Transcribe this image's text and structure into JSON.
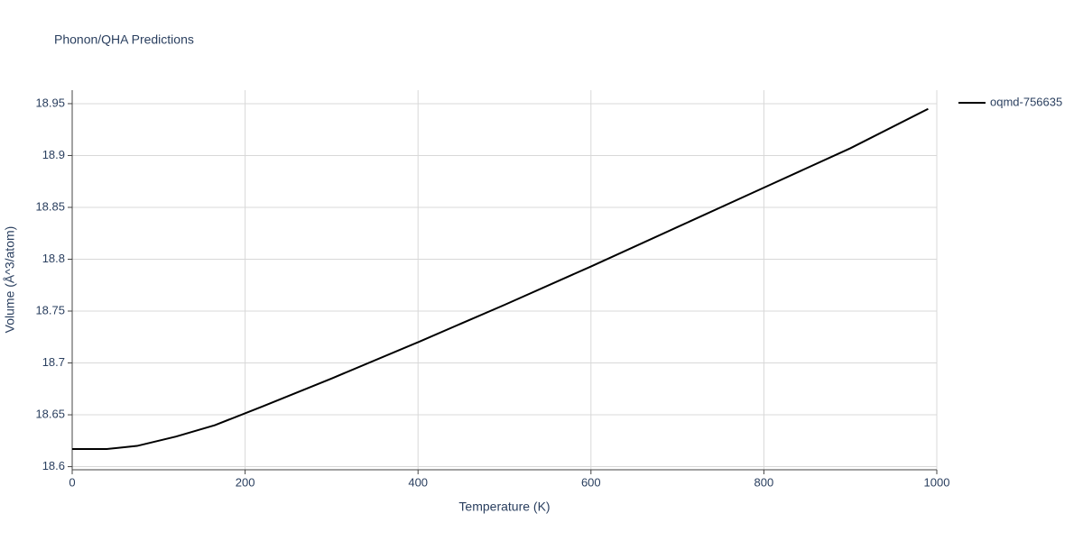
{
  "chart_data": {
    "type": "line",
    "title": "Phonon/QHA Predictions",
    "x_label": "Temperature (K)",
    "y_label": "Volume (Å^3/atom)",
    "x": [
      0,
      40,
      75,
      120,
      165,
      220,
      300,
      400,
      500,
      600,
      700,
      800,
      900,
      990
    ],
    "series": [
      {
        "name": "oqmd-756635",
        "color": "#000000",
        "values": [
          18.617,
          18.617,
          18.62,
          18.629,
          18.64,
          18.658,
          18.685,
          18.72,
          18.756,
          18.793,
          18.831,
          18.869,
          18.907,
          18.945
        ]
      }
    ],
    "xlim": [
      0,
      1000
    ],
    "xticks": [
      0,
      200,
      400,
      600,
      800,
      1000
    ],
    "ylim": [
      18.597,
      18.963
    ],
    "yticks": [
      18.6,
      18.65,
      18.7,
      18.75,
      18.8,
      18.85,
      18.9,
      18.95
    ],
    "grid": true,
    "legend": "top-right"
  }
}
